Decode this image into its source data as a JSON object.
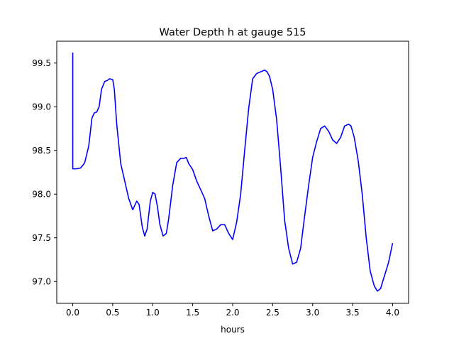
{
  "chart_data": {
    "type": "line",
    "title": "Water Depth h at gauge 515",
    "xlabel": "hours",
    "ylabel": "",
    "xlim": [
      -0.2,
      4.2
    ],
    "ylim": [
      96.75,
      99.75
    ],
    "xticks": [
      0.0,
      0.5,
      1.0,
      1.5,
      2.0,
      2.5,
      3.0,
      3.5,
      4.0
    ],
    "xtick_labels": [
      "0.0",
      "0.5",
      "1.0",
      "1.5",
      "2.0",
      "2.5",
      "3.0",
      "3.5",
      "4.0"
    ],
    "yticks": [
      97.0,
      97.5,
      98.0,
      98.5,
      99.0,
      99.5
    ],
    "ytick_labels": [
      "97.0",
      "97.5",
      "98.0",
      "98.5",
      "99.0",
      "99.5"
    ],
    "grid": false,
    "series": [
      {
        "color": "#0000ff",
        "x": [
          0.0,
          0.0,
          0.05,
          0.1,
          0.15,
          0.2,
          0.24,
          0.27,
          0.3,
          0.33,
          0.36,
          0.4,
          0.43,
          0.46,
          0.5,
          0.52,
          0.55,
          0.6,
          0.65,
          0.7,
          0.75,
          0.8,
          0.83,
          0.87,
          0.9,
          0.93,
          0.97,
          1.0,
          1.03,
          1.06,
          1.09,
          1.13,
          1.17,
          1.2,
          1.25,
          1.3,
          1.35,
          1.39,
          1.42,
          1.45,
          1.5,
          1.55,
          1.6,
          1.65,
          1.7,
          1.75,
          1.8,
          1.85,
          1.9,
          1.95,
          2.0,
          2.05,
          2.1,
          2.15,
          2.2,
          2.25,
          2.3,
          2.35,
          2.4,
          2.43,
          2.46,
          2.5,
          2.55,
          2.6,
          2.65,
          2.7,
          2.75,
          2.8,
          2.85,
          2.9,
          2.95,
          3.0,
          3.05,
          3.1,
          3.15,
          3.2,
          3.25,
          3.3,
          3.35,
          3.4,
          3.45,
          3.48,
          3.52,
          3.57,
          3.62,
          3.67,
          3.72,
          3.77,
          3.81,
          3.85,
          3.9,
          3.95,
          4.0
        ],
        "y": [
          99.62,
          98.29,
          98.29,
          98.3,
          98.36,
          98.55,
          98.87,
          98.93,
          98.94,
          99.0,
          99.2,
          99.29,
          99.3,
          99.32,
          99.31,
          99.2,
          98.8,
          98.35,
          98.15,
          97.95,
          97.82,
          97.92,
          97.88,
          97.62,
          97.52,
          97.6,
          97.92,
          98.02,
          98.0,
          97.85,
          97.65,
          97.52,
          97.55,
          97.72,
          98.1,
          98.36,
          98.41,
          98.41,
          98.42,
          98.35,
          98.28,
          98.15,
          98.05,
          97.95,
          97.75,
          97.58,
          97.6,
          97.65,
          97.65,
          97.55,
          97.48,
          97.68,
          98.0,
          98.5,
          98.98,
          99.32,
          99.38,
          99.4,
          99.42,
          99.4,
          99.35,
          99.2,
          98.85,
          98.3,
          97.7,
          97.38,
          97.2,
          97.22,
          97.38,
          97.75,
          98.1,
          98.42,
          98.6,
          98.75,
          98.78,
          98.72,
          98.62,
          98.58,
          98.65,
          98.78,
          98.8,
          98.78,
          98.65,
          98.38,
          98.0,
          97.5,
          97.12,
          96.95,
          96.89,
          96.92,
          97.07,
          97.22,
          97.44
        ]
      }
    ]
  }
}
